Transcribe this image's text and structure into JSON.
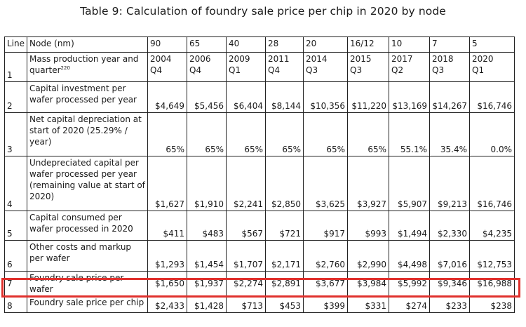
{
  "title": "Table 9: Calculation of foundry sale price per chip in 2020 by node",
  "header": {
    "line_label": "Line",
    "row_label": "Node (nm)",
    "nodes": [
      "90",
      "65",
      "40",
      "28",
      "20",
      "16/12",
      "10",
      "7",
      "5"
    ]
  },
  "rows": [
    {
      "line": "1",
      "label": "Mass production year and quarter",
      "footnote": "220",
      "years": [
        "2004",
        "2006",
        "2009",
        "2011",
        "2014",
        "2015",
        "2017",
        "2018",
        "2020"
      ],
      "quarters": [
        "Q4",
        "Q4",
        "Q1",
        "Q4",
        "Q3",
        "Q3",
        "Q2",
        "Q3",
        "Q1"
      ]
    },
    {
      "line": "2",
      "label": "Capital investment per wafer processed per year",
      "values": [
        "$4,649",
        "$5,456",
        "$6,404",
        "$8,144",
        "$10,356",
        "$11,220",
        "$13,169",
        "$14,267",
        "$16,746"
      ]
    },
    {
      "line": "3",
      "label": "Net capital depreciation at start of 2020 (25.29% / year)",
      "values": [
        "65%",
        "65%",
        "65%",
        "65%",
        "65%",
        "65%",
        "55.1%",
        "35.4%",
        "0.0%"
      ]
    },
    {
      "line": "4",
      "label": "Undepreciated capital per wafer processed per year (remaining value at start of 2020)",
      "values": [
        "$1,627",
        "$1,910",
        "$2,241",
        "$2,850",
        "$3,625",
        "$3,927",
        "$5,907",
        "$9,213",
        "$16,746"
      ]
    },
    {
      "line": "5",
      "label": "Capital consumed per wafer processed in 2020",
      "values": [
        "$411",
        "$483",
        "$567",
        "$721",
        "$917",
        "$993",
        "$1,494",
        "$2,330",
        "$4,235"
      ]
    },
    {
      "line": "6",
      "label": "Other costs and markup per wafer",
      "values": [
        "$1,293",
        "$1,454",
        "$1,707",
        "$2,171",
        "$2,760",
        "$2,990",
        "$4,498",
        "$7,016",
        "$12,753"
      ]
    },
    {
      "line": "7",
      "label": "Foundry sale price per wafer",
      "values": [
        "$1,650",
        "$1,937",
        "$2,274",
        "$2,891",
        "$3,677",
        "$3,984",
        "$5,992",
        "$9,346",
        "$16,988"
      ],
      "highlighted": true
    },
    {
      "line": "8",
      "label": "Foundry sale price per chip",
      "values": [
        "$2,433",
        "$1,428",
        "$713",
        "$453",
        "$399",
        "$331",
        "$274",
        "$233",
        "$238"
      ]
    }
  ],
  "colors": {
    "highlight": "#e0302c",
    "border": "#222222",
    "text": "#1a1a1a"
  }
}
